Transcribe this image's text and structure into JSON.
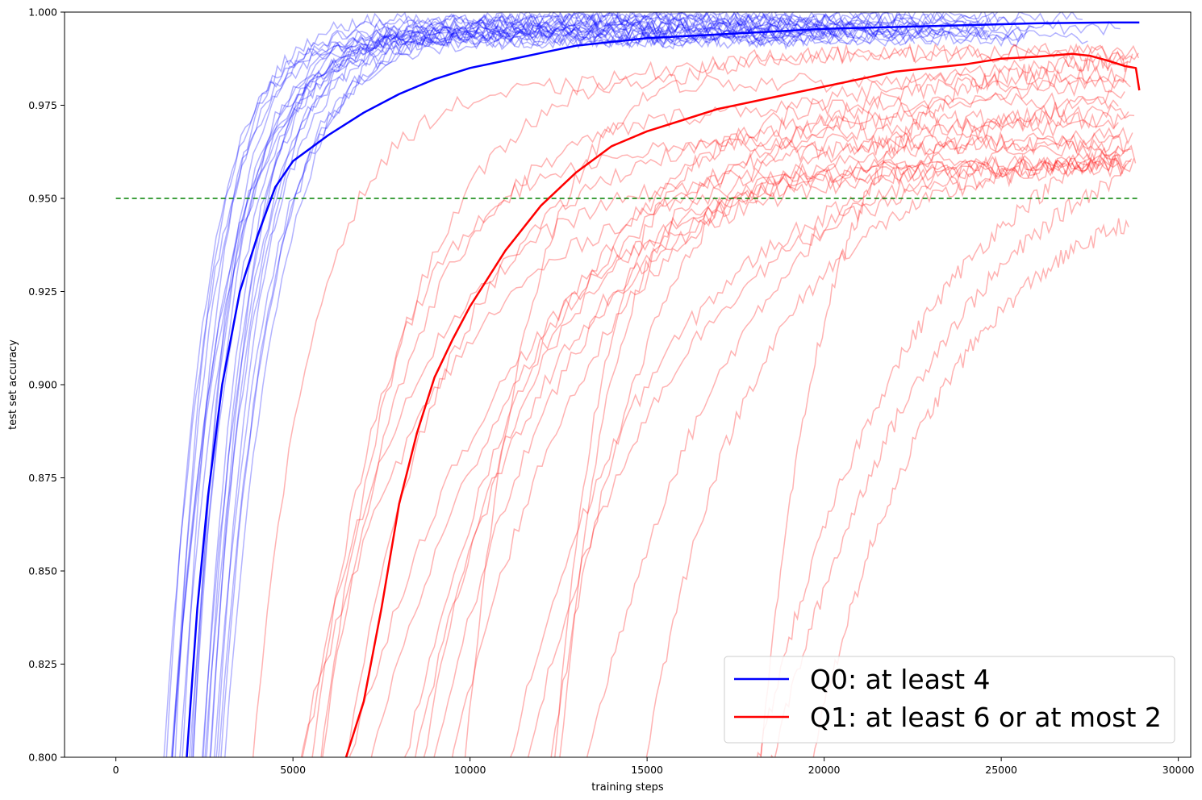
{
  "chart_data": {
    "type": "line",
    "xlabel": "training steps",
    "ylabel": "test set accuracy",
    "xlim": [
      -1450,
      30350
    ],
    "ylim": [
      0.8,
      1.0
    ],
    "x_ticks": [
      0,
      5000,
      10000,
      15000,
      20000,
      25000,
      30000
    ],
    "x_tick_labels": [
      "0",
      "5000",
      "10000",
      "15000",
      "20000",
      "25000",
      "30000"
    ],
    "y_ticks": [
      0.8,
      0.825,
      0.85,
      0.875,
      0.9,
      0.925,
      0.95,
      0.975,
      1.0
    ],
    "y_tick_labels": [
      "0.800",
      "0.825",
      "0.850",
      "0.875",
      "0.900",
      "0.925",
      "0.950",
      "0.975",
      "1.000"
    ],
    "grid": false,
    "legend_position": "bottom-right",
    "colors": {
      "q0": "#0000ff",
      "q1": "#ff0000",
      "threshold": "#008000"
    },
    "threshold": {
      "y": 0.95,
      "x_range": [
        0,
        28900
      ],
      "style": "dashed"
    },
    "series": [
      {
        "name": "Q0: at least 4",
        "color": "#0000ff",
        "x": [
          2000,
          2300,
          2600,
          3000,
          3500,
          4000,
          4500,
          5000,
          6000,
          7000,
          8000,
          9000,
          10000,
          11000,
          12000,
          13000,
          14000,
          15000,
          16000,
          17000,
          18000,
          19000,
          20000,
          22000,
          24000,
          26000,
          28000,
          28900
        ],
        "y": [
          0.8,
          0.84,
          0.87,
          0.9,
          0.925,
          0.94,
          0.953,
          0.96,
          0.967,
          0.973,
          0.978,
          0.982,
          0.985,
          0.987,
          0.989,
          0.991,
          0.992,
          0.993,
          0.9935,
          0.994,
          0.9945,
          0.995,
          0.9955,
          0.996,
          0.9965,
          0.997,
          0.9972,
          0.9972
        ]
      },
      {
        "name": "Q1: at least 6 or at most 2",
        "color": "#ff0000",
        "x": [
          6500,
          7000,
          7500,
          8000,
          8500,
          9000,
          9500,
          10000,
          11000,
          12000,
          13000,
          14000,
          15000,
          16000,
          17000,
          18000,
          19000,
          20000,
          21000,
          22000,
          23000,
          24000,
          25000,
          26000,
          27000,
          27500,
          28000,
          28500,
          28800,
          28900
        ],
        "y": [
          0.8,
          0.815,
          0.84,
          0.868,
          0.887,
          0.902,
          0.912,
          0.921,
          0.936,
          0.948,
          0.957,
          0.964,
          0.968,
          0.971,
          0.974,
          0.976,
          0.978,
          0.98,
          0.982,
          0.984,
          0.985,
          0.986,
          0.9875,
          0.988,
          0.9888,
          0.9883,
          0.987,
          0.9855,
          0.985,
          0.979
        ]
      }
    ]
  }
}
